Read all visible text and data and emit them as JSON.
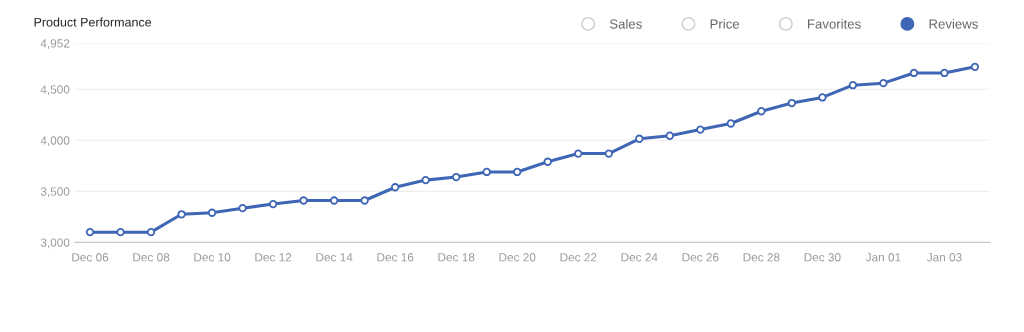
{
  "chart_data": {
    "type": "line",
    "title": "Product Performance",
    "categories": [
      "Dec 06",
      null,
      "Dec 08",
      null,
      "Dec 10",
      null,
      "Dec 12",
      null,
      "Dec 14",
      null,
      "Dec 16",
      null,
      "Dec 18",
      null,
      "Dec 20",
      null,
      "Dec 22",
      null,
      "Dec 24",
      null,
      "Dec 26",
      null,
      "Dec 28",
      null,
      "Dec 30",
      null,
      "Jan 01",
      null,
      "Jan 03",
      null
    ],
    "series": [
      {
        "name": "Sales",
        "values": [
          null,
          null,
          null,
          null,
          null,
          null,
          null,
          null,
          null,
          null,
          null,
          null,
          null,
          null,
          null,
          null,
          null,
          null,
          null,
          null,
          null,
          null,
          null,
          null,
          null,
          null,
          null,
          null,
          null,
          null
        ]
      },
      {
        "name": "Price",
        "values": [
          null,
          null,
          null,
          null,
          null,
          null,
          null,
          null,
          null,
          null,
          null,
          null,
          null,
          null,
          null,
          null,
          null,
          null,
          null,
          null,
          null,
          null,
          null,
          null,
          null,
          null,
          null,
          null,
          null,
          null
        ]
      },
      {
        "name": "Favorites",
        "values": [
          null,
          null,
          null,
          null,
          null,
          null,
          null,
          null,
          null,
          null,
          null,
          null,
          null,
          null,
          null,
          null,
          null,
          null,
          null,
          null,
          null,
          null,
          null,
          null,
          null,
          null,
          null,
          null,
          null,
          null
        ]
      },
      {
        "name": "Reviews",
        "color": "#3f66b5",
        "values": [
          3100,
          3100,
          3100,
          3275,
          3290,
          3335,
          3375,
          3410,
          3410,
          3410,
          3540,
          3610,
          3640,
          3690,
          3690,
          3790,
          3870,
          3870,
          4015,
          4045,
          4105,
          4165,
          4285,
          4365,
          4420,
          4540,
          4560,
          4660,
          4660,
          4720
        ]
      }
    ],
    "ylim": [
      3000,
      4952
    ],
    "yticks": [
      {
        "value": 3000,
        "label": "3,000"
      },
      {
        "value": 3500,
        "label": "3,500"
      },
      {
        "value": 4000,
        "label": "4,000"
      },
      {
        "value": 4500,
        "label": "4,500"
      },
      {
        "value": 4952,
        "label": "4,952"
      }
    ],
    "grid": "y",
    "legend": "top right",
    "marker": "circle",
    "line_style": "solid"
  }
}
